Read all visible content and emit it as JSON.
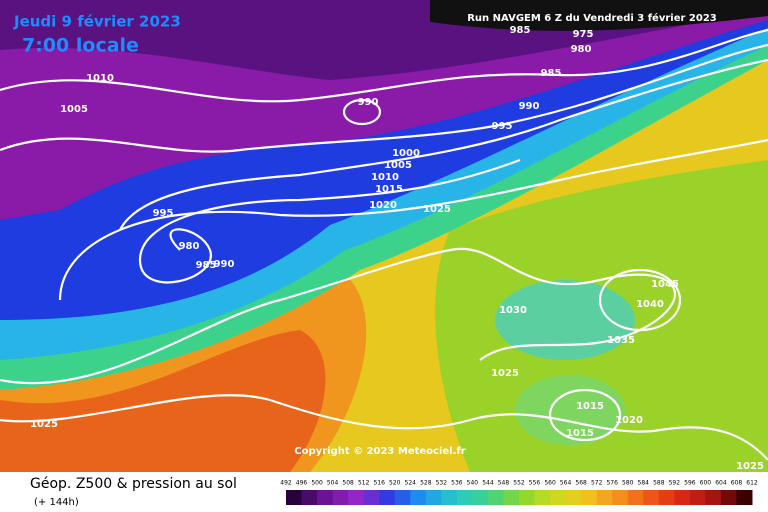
{
  "header": {
    "date": "Jeudi 9 février 2023",
    "time": "7:00 locale",
    "run": "Run NAVGEM 6 Z du Vendredi 3 février 2023"
  },
  "isobar_labels": [
    "985",
    "975",
    "980",
    "985",
    "990",
    "995",
    "1000",
    "1005",
    "1010",
    "1015",
    "1020",
    "1025",
    "995",
    "980",
    "985",
    "990",
    "1010",
    "1005",
    "990",
    "1030",
    "1045",
    "1040",
    "1035",
    "1025",
    "1015",
    "1015",
    "1020",
    "1025",
    "1025"
  ],
  "copyright": "Copyright © 2023 Meteociel.fr",
  "footer": {
    "title": "Géop. Z500 & pression au sol",
    "subtitle": "(+ 144h)"
  },
  "colorbar": {
    "values": [
      492,
      496,
      500,
      504,
      508,
      512,
      516,
      520,
      524,
      528,
      532,
      536,
      540,
      544,
      548,
      552,
      556,
      560,
      564,
      568,
      572,
      576,
      580,
      584,
      588,
      592,
      596,
      600,
      604,
      608,
      612
    ]
  }
}
